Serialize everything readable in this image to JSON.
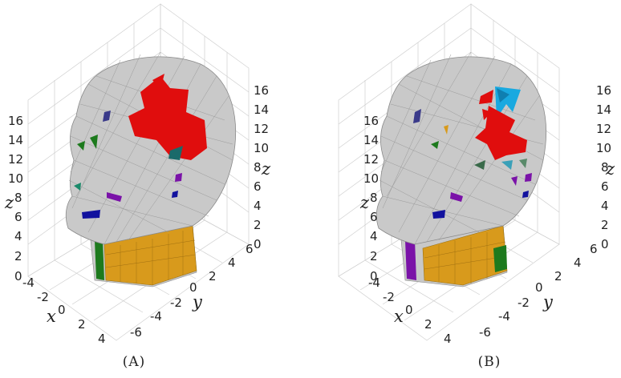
{
  "panels": [
    {
      "caption": "(A)",
      "z_ticks_left": [
        "0",
        "2",
        "4",
        "6",
        "8",
        "10",
        "12",
        "14",
        "16"
      ],
      "z_ticks_right": [
        "0",
        "2",
        "4",
        "6",
        "8",
        "10",
        "12",
        "14",
        "16"
      ],
      "x_ticks": [
        "-4",
        "-2",
        "0",
        "2",
        "4"
      ],
      "y_ticks": [
        "-6",
        "-4",
        "-2",
        "0",
        "2",
        "4",
        "6"
      ],
      "axis_labels": {
        "x": "x",
        "y": "y",
        "z_left": "z",
        "z_right": "z"
      }
    },
    {
      "caption": "(B)",
      "z_ticks_left": [
        "0",
        "2",
        "4",
        "6",
        "8",
        "10",
        "12",
        "14",
        "16"
      ],
      "z_ticks_right": [
        "0",
        "2",
        "4",
        "6",
        "8",
        "10",
        "12",
        "14",
        "16"
      ],
      "x_ticks": [
        "-4",
        "-2",
        "0",
        "2",
        "4"
      ],
      "y_ticks": [
        "-6",
        "-4",
        "-2",
        "0",
        "2",
        "4",
        "6"
      ],
      "axis_labels": {
        "x": "x",
        "y": "y",
        "z_left": "z",
        "z_right": "z"
      }
    }
  ],
  "colors": {
    "mesh": "#c8c8c8",
    "mesh_dark": "#9a9a9a",
    "red": "#e00d0d",
    "orange": "#d89a1c",
    "blue": "#12129e",
    "purple": "#7a12a8",
    "green": "#1d7a1d",
    "teal": "#1a6a6a",
    "cyan": "#19a9e0"
  }
}
